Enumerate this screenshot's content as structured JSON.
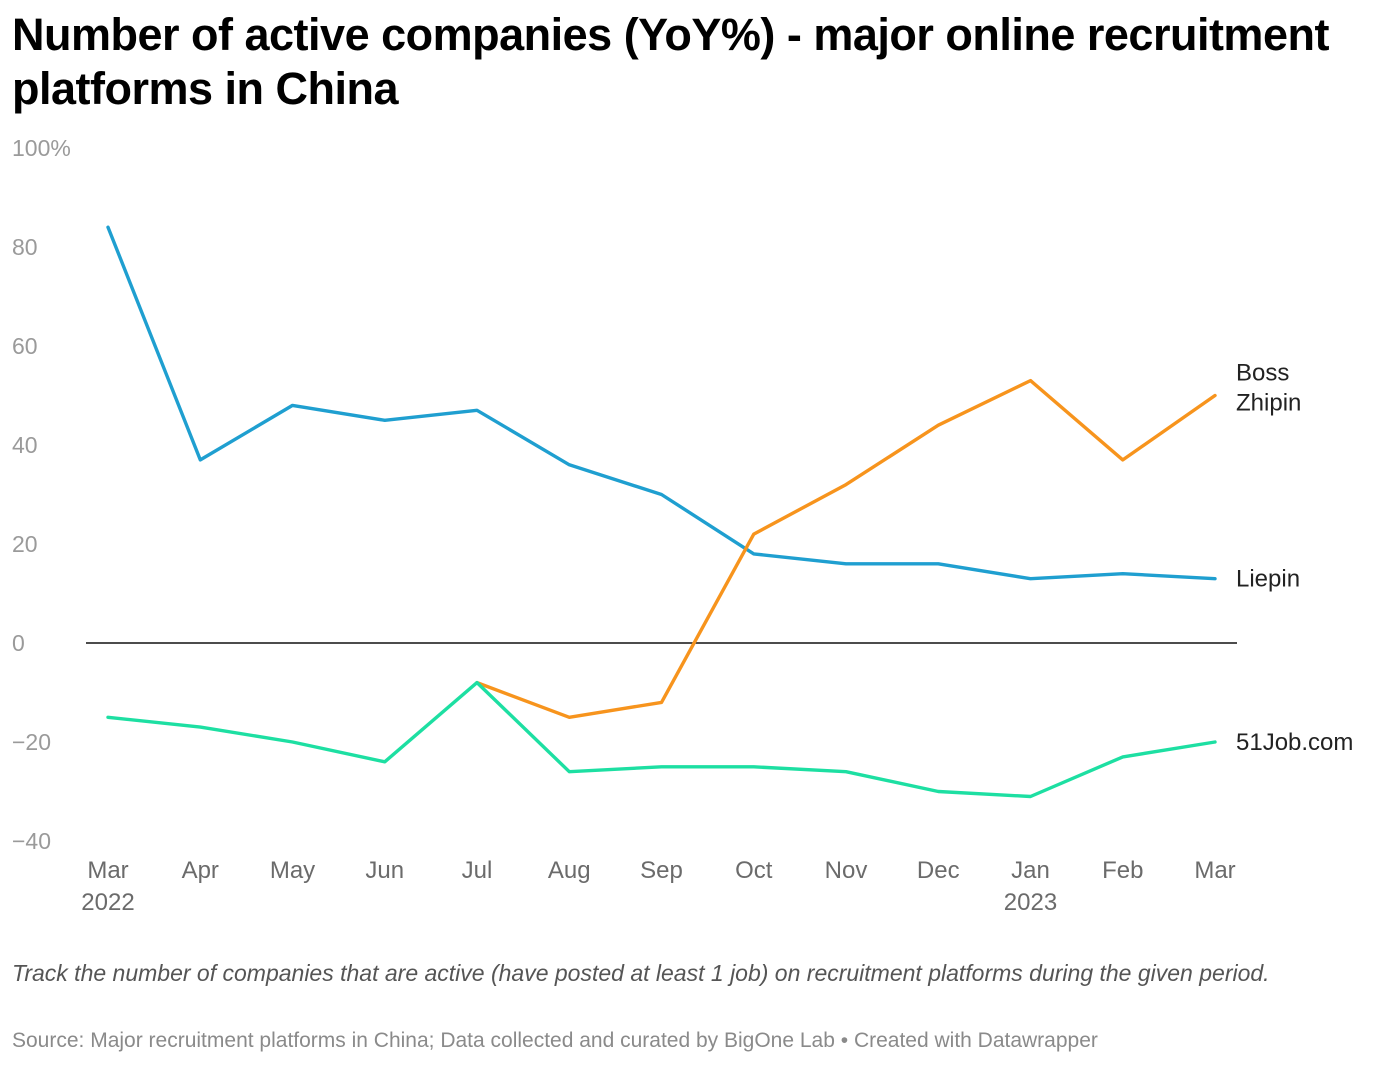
{
  "title": "Number of active companies (YoY%) - major online recruitment platforms in China",
  "note": "Track the number of companies that are active (have posted at least 1 job) on recruitment platforms during the given period.",
  "source": "Source: Major recruitment platforms in China; Data collected and curated by BigOne Lab • Created with Datawrapper",
  "chart_data": {
    "type": "line",
    "title": "Number of active companies (YoY%) - major online recruitment platforms in China",
    "categories": [
      "Mar\n2022",
      "Apr",
      "May",
      "Jun",
      "Jul",
      "Aug",
      "Sep",
      "Oct",
      "Nov",
      "Dec",
      "Jan\n2023",
      "Feb",
      "Mar"
    ],
    "y_ticks": [
      {
        "value": 100,
        "label": "100%"
      },
      {
        "value": 80,
        "label": "80"
      },
      {
        "value": 60,
        "label": "60"
      },
      {
        "value": 40,
        "label": "40"
      },
      {
        "value": 20,
        "label": "20"
      },
      {
        "value": 0,
        "label": "0"
      },
      {
        "value": -20,
        "label": "−20"
      },
      {
        "value": -40,
        "label": "−40"
      }
    ],
    "ylim": [
      -40,
      100
    ],
    "grid": false,
    "zero_line": true,
    "series": [
      {
        "name": "Liepin",
        "color": "#1f9fd0",
        "values": [
          84,
          37,
          48,
          45,
          47,
          36,
          30,
          18,
          16,
          16,
          13,
          14,
          13
        ]
      },
      {
        "name": "Boss Zhipin",
        "color": "#f7941d",
        "values": [
          null,
          null,
          null,
          null,
          -8,
          -15,
          -12,
          22,
          32,
          44,
          53,
          37,
          50
        ]
      },
      {
        "name": "51Job.com",
        "color": "#1ddfa2",
        "values": [
          -15,
          -17,
          -20,
          -24,
          -8,
          -26,
          -25,
          -25,
          -26,
          -30,
          -31,
          -23,
          -20
        ]
      }
    ]
  }
}
